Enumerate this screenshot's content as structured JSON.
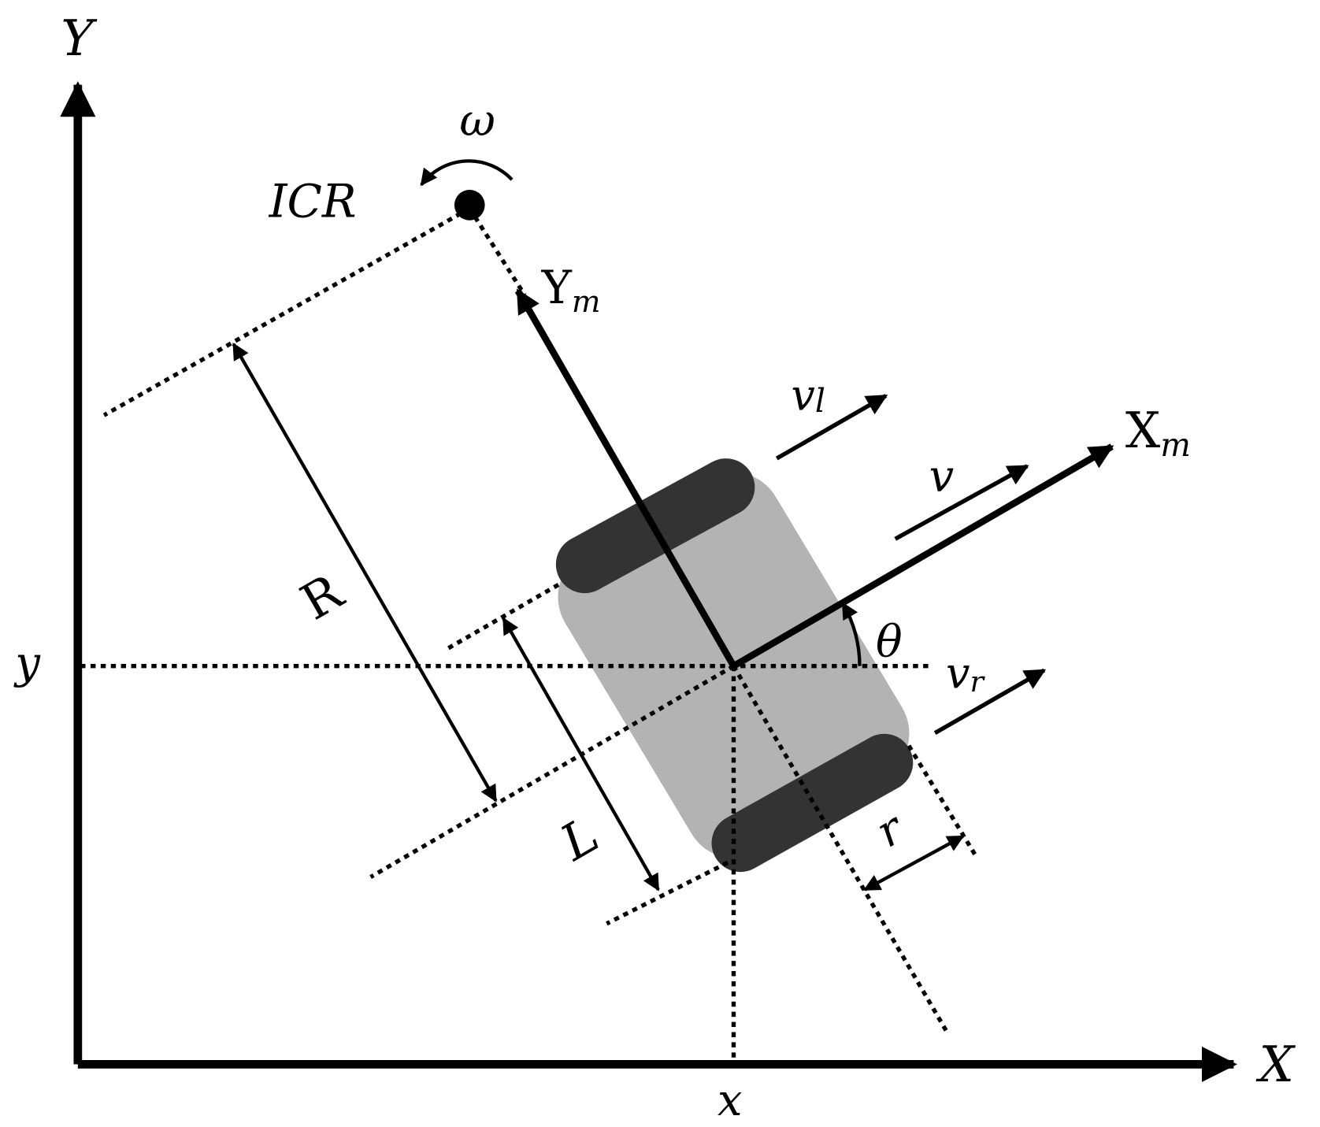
{
  "labels": {
    "Y": "Y",
    "X": "X",
    "y": "y",
    "x": "x",
    "omega": "ω",
    "ICR": "ICR",
    "Ym_main": "Y",
    "Ym_sub": "m",
    "Xm_main": "X",
    "Xm_sub": "m",
    "vl_main": "v",
    "vl_sub": "l",
    "v": "v",
    "vr_main": "v",
    "vr_sub": "r",
    "theta": "θ",
    "R": "R",
    "L": "L",
    "r": "r"
  },
  "colors": {
    "ink": "#000000",
    "wheel": "#333333",
    "body": "#b3b3b3",
    "background": "#ffffff"
  }
}
